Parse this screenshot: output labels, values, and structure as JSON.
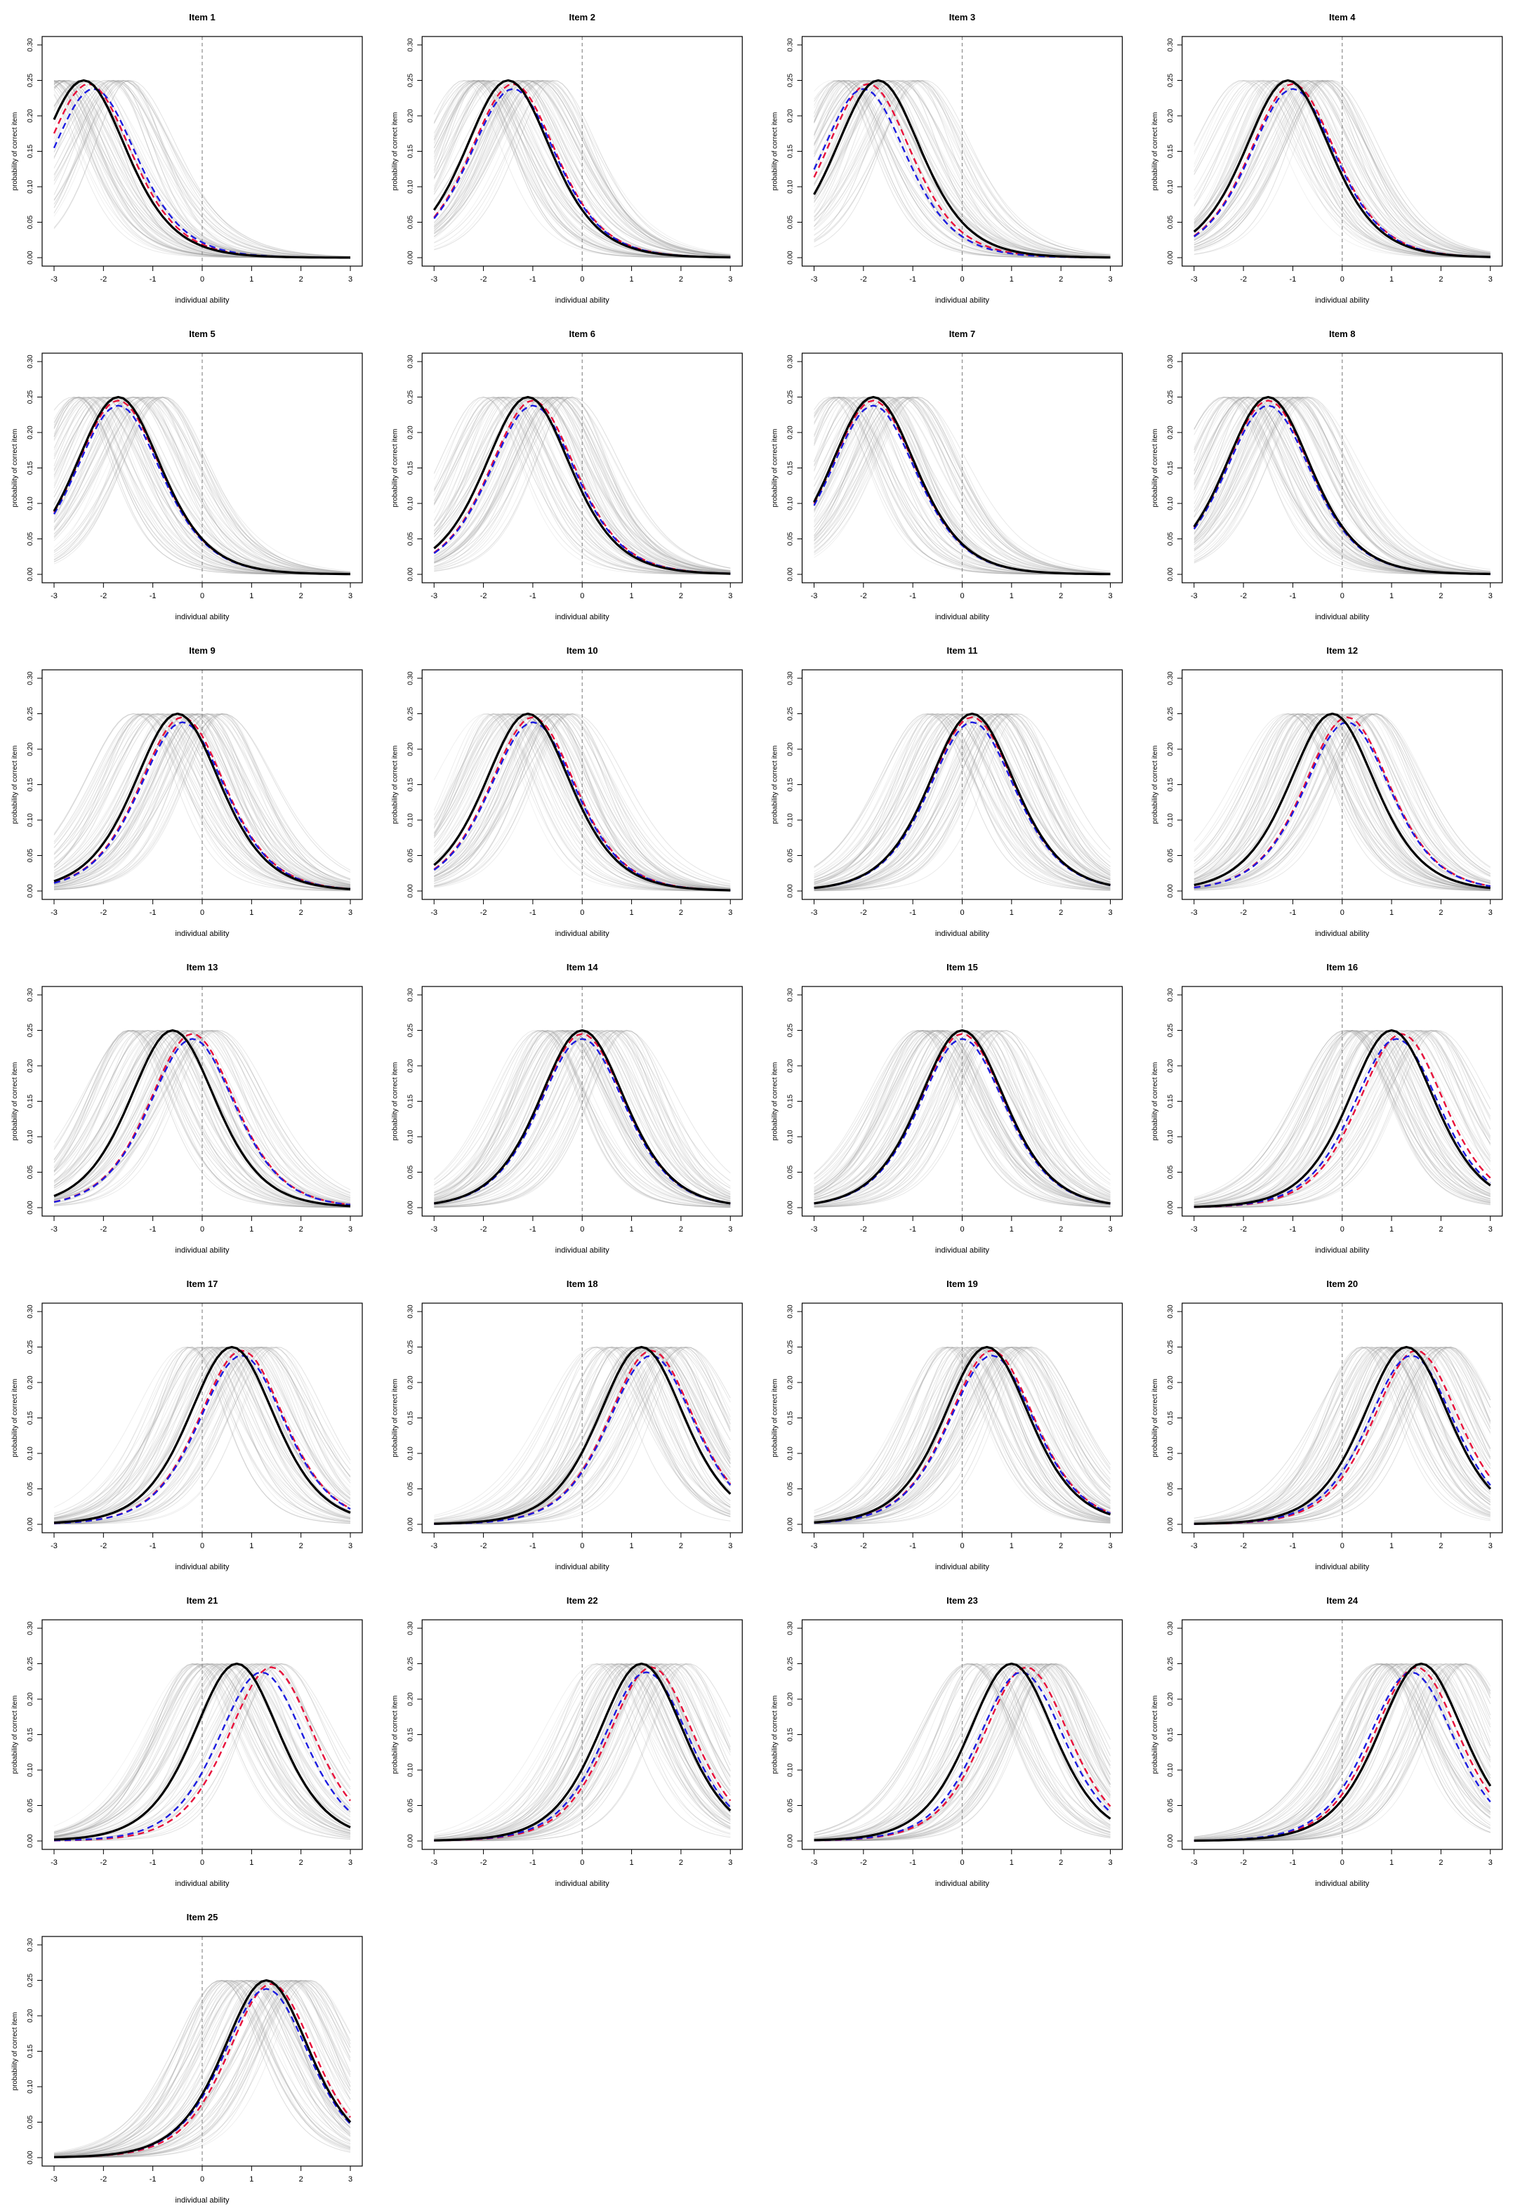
{
  "figure": {
    "xlabel": "individual ability",
    "ylabel": "probability of correct item",
    "xticks": [
      "-3",
      "-2",
      "-1",
      "0",
      "1",
      "2",
      "3"
    ],
    "yticks": [
      "0.00",
      "0.05",
      "0.10",
      "0.15",
      "0.20",
      "0.25",
      "0.30"
    ]
  },
  "colors": {
    "black_curve": "#000000",
    "red_curve": "#e8103a",
    "blue_curve": "#1c1ce0",
    "gray_curves": "#9a9a9a",
    "reference_line": "#8c8c8c"
  },
  "chart_data": [
    {
      "type": "line",
      "title": "Item 1",
      "xlabel": "individual ability",
      "ylabel": "probability of correct item",
      "xlim": [
        -3,
        3
      ],
      "ylim": [
        0,
        0.3
      ],
      "vline": 0,
      "centers": {
        "black": -2.4,
        "red": -2.3,
        "blue": -2.2
      }
    },
    {
      "type": "line",
      "title": "Item 2",
      "xlabel": "individual ability",
      "ylabel": "probability of correct item",
      "xlim": [
        -3,
        3
      ],
      "ylim": [
        0,
        0.3
      ],
      "vline": 0,
      "centers": {
        "black": -1.5,
        "red": -1.4,
        "blue": -1.4
      }
    },
    {
      "type": "line",
      "title": "Item 3",
      "xlabel": "individual ability",
      "ylabel": "probability of correct item",
      "xlim": [
        -3,
        3
      ],
      "ylim": [
        0,
        0.3
      ],
      "vline": 0,
      "centers": {
        "black": -1.7,
        "red": -1.9,
        "blue": -2.0
      }
    },
    {
      "type": "line",
      "title": "Item 4",
      "xlabel": "individual ability",
      "ylabel": "probability of correct item",
      "xlim": [
        -3,
        3
      ],
      "ylim": [
        0,
        0.3
      ],
      "vline": 0,
      "centers": {
        "black": -1.1,
        "red": -1.0,
        "blue": -1.0
      }
    },
    {
      "type": "line",
      "title": "Item 5",
      "xlabel": "individual ability",
      "ylabel": "probability of correct item",
      "xlim": [
        -3,
        3
      ],
      "ylim": [
        0,
        0.3
      ],
      "vline": 0,
      "centers": {
        "black": -1.7,
        "red": -1.7,
        "blue": -1.7
      }
    },
    {
      "type": "line",
      "title": "Item 6",
      "xlabel": "individual ability",
      "ylabel": "probability of correct item",
      "xlim": [
        -3,
        3
      ],
      "ylim": [
        0,
        0.3
      ],
      "vline": 0,
      "centers": {
        "black": -1.1,
        "red": -1.0,
        "blue": -1.0
      }
    },
    {
      "type": "line",
      "title": "Item 7",
      "xlabel": "individual ability",
      "ylabel": "probability of correct item",
      "xlim": [
        -3,
        3
      ],
      "ylim": [
        0,
        0.3
      ],
      "vline": 0,
      "centers": {
        "black": -1.8,
        "red": -1.8,
        "blue": -1.8
      }
    },
    {
      "type": "line",
      "title": "Item 8",
      "xlabel": "individual ability",
      "ylabel": "probability of correct item",
      "xlim": [
        -3,
        3
      ],
      "ylim": [
        0,
        0.3
      ],
      "vline": 0,
      "centers": {
        "black": -1.5,
        "red": -1.5,
        "blue": -1.5
      }
    },
    {
      "type": "line",
      "title": "Item 9",
      "xlabel": "individual ability",
      "ylabel": "probability of correct item",
      "xlim": [
        -3,
        3
      ],
      "ylim": [
        0,
        0.3
      ],
      "vline": 0,
      "centers": {
        "black": -0.5,
        "red": -0.4,
        "blue": -0.4
      }
    },
    {
      "type": "line",
      "title": "Item 10",
      "xlabel": "individual ability",
      "ylabel": "probability of correct item",
      "xlim": [
        -3,
        3
      ],
      "ylim": [
        0,
        0.3
      ],
      "vline": 0,
      "centers": {
        "black": -1.1,
        "red": -1.0,
        "blue": -1.0
      }
    },
    {
      "type": "line",
      "title": "Item 11",
      "xlabel": "individual ability",
      "ylabel": "probability of correct item",
      "xlim": [
        -3,
        3
      ],
      "ylim": [
        0,
        0.3
      ],
      "vline": 0,
      "centers": {
        "black": 0.2,
        "red": 0.2,
        "blue": 0.2
      }
    },
    {
      "type": "line",
      "title": "Item 12",
      "xlabel": "individual ability",
      "ylabel": "probability of correct item",
      "xlim": [
        -3,
        3
      ],
      "ylim": [
        0,
        0.3
      ],
      "vline": 0,
      "centers": {
        "black": -0.2,
        "red": 0.1,
        "blue": 0.1
      }
    },
    {
      "type": "line",
      "title": "Item 13",
      "xlabel": "individual ability",
      "ylabel": "probability of correct item",
      "xlim": [
        -3,
        3
      ],
      "ylim": [
        0,
        0.3
      ],
      "vline": 0,
      "centers": {
        "black": -0.6,
        "red": -0.2,
        "blue": -0.2
      }
    },
    {
      "type": "line",
      "title": "Item 14",
      "xlabel": "individual ability",
      "ylabel": "probability of correct item",
      "xlim": [
        -3,
        3
      ],
      "ylim": [
        0,
        0.3
      ],
      "vline": 0,
      "centers": {
        "black": 0.0,
        "red": 0.0,
        "blue": 0.0
      }
    },
    {
      "type": "line",
      "title": "Item 15",
      "xlabel": "individual ability",
      "ylabel": "probability of correct item",
      "xlim": [
        -3,
        3
      ],
      "ylim": [
        0,
        0.3
      ],
      "vline": 0,
      "centers": {
        "black": 0.0,
        "red": 0.0,
        "blue": 0.0
      }
    },
    {
      "type": "line",
      "title": "Item 16",
      "xlabel": "individual ability",
      "ylabel": "probability of correct item",
      "xlim": [
        -3,
        3
      ],
      "ylim": [
        0,
        0.3
      ],
      "vline": 0,
      "centers": {
        "black": 1.0,
        "red": 1.2,
        "blue": 1.1
      }
    },
    {
      "type": "line",
      "title": "Item 17",
      "xlabel": "individual ability",
      "ylabel": "probability of correct item",
      "xlim": [
        -3,
        3
      ],
      "ylim": [
        0,
        0.3
      ],
      "vline": 0,
      "centers": {
        "black": 0.6,
        "red": 0.8,
        "blue": 0.8
      }
    },
    {
      "type": "line",
      "title": "Item 18",
      "xlabel": "individual ability",
      "ylabel": "probability of correct item",
      "xlim": [
        -3,
        3
      ],
      "ylim": [
        0,
        0.3
      ],
      "vline": 0,
      "centers": {
        "black": 1.2,
        "red": 1.4,
        "blue": 1.4
      }
    },
    {
      "type": "line",
      "title": "Item 19",
      "xlabel": "individual ability",
      "ylabel": "probability of correct item",
      "xlim": [
        -3,
        3
      ],
      "ylim": [
        0,
        0.3
      ],
      "vline": 0,
      "centers": {
        "black": 0.5,
        "red": 0.6,
        "blue": 0.6
      }
    },
    {
      "type": "line",
      "title": "Item 20",
      "xlabel": "individual ability",
      "ylabel": "probability of correct item",
      "xlim": [
        -3,
        3
      ],
      "ylim": [
        0,
        0.3
      ],
      "vline": 0,
      "centers": {
        "black": 1.3,
        "red": 1.5,
        "blue": 1.4
      }
    },
    {
      "type": "line",
      "title": "Item 21",
      "xlabel": "individual ability",
      "ylabel": "probability of correct item",
      "xlim": [
        -3,
        3
      ],
      "ylim": [
        0,
        0.3
      ],
      "vline": 0,
      "centers": {
        "black": 0.7,
        "red": 1.4,
        "blue": 1.2
      }
    },
    {
      "type": "line",
      "title": "Item 22",
      "xlabel": "individual ability",
      "ylabel": "probability of correct item",
      "xlim": [
        -3,
        3
      ],
      "ylim": [
        0,
        0.3
      ],
      "vline": 0,
      "centers": {
        "black": 1.2,
        "red": 1.4,
        "blue": 1.3
      }
    },
    {
      "type": "line",
      "title": "Item 23",
      "xlabel": "individual ability",
      "ylabel": "probability of correct item",
      "xlim": [
        -3,
        3
      ],
      "ylim": [
        0,
        0.3
      ],
      "vline": 0,
      "centers": {
        "black": 1.0,
        "red": 1.3,
        "blue": 1.2
      }
    },
    {
      "type": "line",
      "title": "Item 24",
      "xlabel": "individual ability",
      "ylabel": "probability of correct item",
      "xlim": [
        -3,
        3
      ],
      "ylim": [
        0,
        0.3
      ],
      "vline": 0,
      "centers": {
        "black": 1.6,
        "red": 1.5,
        "blue": 1.4
      }
    },
    {
      "type": "line",
      "title": "Item 25",
      "xlabel": "individual ability",
      "ylabel": "probability of correct item",
      "xlim": [
        -3,
        3
      ],
      "ylim": [
        0,
        0.3
      ],
      "vline": 0,
      "centers": {
        "black": 1.3,
        "red": 1.4,
        "blue": 1.3
      }
    }
  ]
}
